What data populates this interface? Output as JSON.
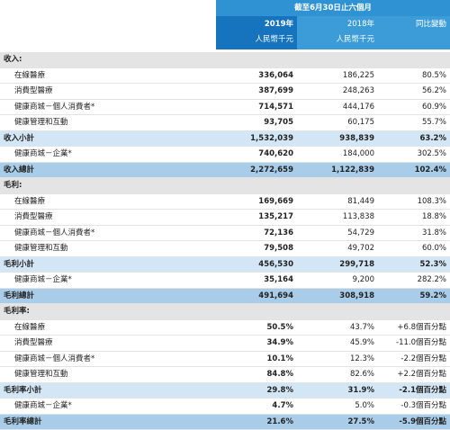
{
  "table": {
    "header": {
      "period": "截至6月30日止六個月",
      "columns": [
        {
          "year": "2019年",
          "unit": "人民幣千元"
        },
        {
          "year": "2018年",
          "unit": "人民幣千元"
        },
        {
          "year": "同比變動"
        }
      ]
    },
    "rows": [
      [
        "收入:"
      ],
      [
        "在線醫療",
        "336,064",
        "186,225",
        "80.5%"
      ],
      [
        "消費型醫療",
        "387,699",
        "248,263",
        "56.2%"
      ],
      [
        "健康商城－個人消費者*",
        "714,571",
        "444,176",
        "60.9%"
      ],
      [
        "健康管理和互動",
        "93,705",
        "60,175",
        "55.7%"
      ],
      [
        "收入小計",
        "1,532,039",
        "938,839",
        "63.2%"
      ],
      [
        "健康商城－企業*",
        "740,620",
        "184,000",
        "302.5%"
      ],
      [
        "收入總計",
        "2,272,659",
        "1,122,839",
        "102.4%"
      ],
      [
        "毛利:"
      ],
      [
        "在線醫療",
        "169,669",
        "81,449",
        "108.3%"
      ],
      [
        "消費型醫療",
        "135,217",
        "113,838",
        "18.8%"
      ],
      [
        "健康商城－個人消費者*",
        "72,136",
        "54,729",
        "31.8%"
      ],
      [
        "健康管理和互動",
        "79,508",
        "49,702",
        "60.0%"
      ],
      [
        "毛利小計",
        "456,530",
        "299,718",
        "52.3%"
      ],
      [
        "健康商城－企業*",
        "35,164",
        "9,200",
        "282.2%"
      ],
      [
        "毛利總計",
        "491,694",
        "308,918",
        "59.2%"
      ],
      [
        "毛利率:"
      ],
      [
        "在線醫療",
        "50.5%",
        "43.7%",
        "+6.8個百分點"
      ],
      [
        "消費型醫療",
        "34.9%",
        "45.9%",
        "-11.0個百分點"
      ],
      [
        "健康商城－個人消費者*",
        "10.1%",
        "12.3%",
        "-2.2個百分點"
      ],
      [
        "健康管理和互動",
        "84.8%",
        "82.6%",
        "+2.2個百分點"
      ],
      [
        "毛利率小計",
        "29.8%",
        "31.9%",
        "-2.1個百分點"
      ],
      [
        "健康商城－企業*",
        "4.7%",
        "5.0%",
        "-0.3個百分點"
      ],
      [
        "毛利率總計",
        "21.6%",
        "27.5%",
        "-5.9個百分點"
      ]
    ]
  }
}
